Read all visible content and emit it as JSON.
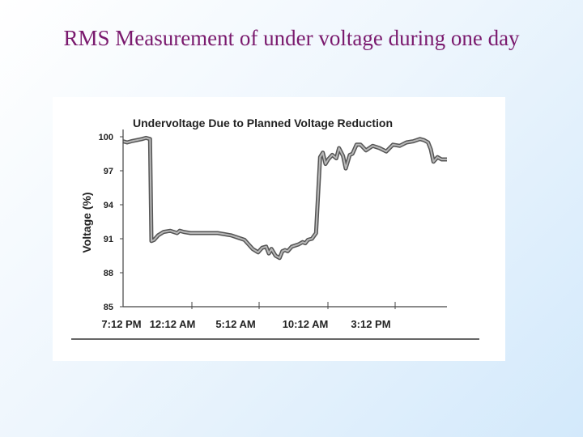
{
  "slide": {
    "title": "RMS Measurement of under voltage during one day"
  },
  "chart_data": {
    "type": "line",
    "title": "Undervoltage Due to Planned Voltage Reduction",
    "xlabel": "",
    "ylabel": "Voltage (%)",
    "ylim": [
      85,
      100
    ],
    "yticks": [
      "100",
      "97",
      "94",
      "91",
      "88",
      "85"
    ],
    "xticks": [
      "7:12 PM",
      "12:12 AM",
      "5:12 AM",
      "10:12 AM",
      "3:12 PM"
    ],
    "xlim": [
      0,
      24
    ],
    "grid": false,
    "series": [
      {
        "color": "#555555",
        "x": [
          0,
          0.3,
          0.6,
          1.0,
          1.4,
          1.7,
          2.0,
          2.1,
          2.3,
          2.6,
          3.0,
          3.5,
          4.0,
          4.2,
          4.5,
          5.0,
          6.0,
          7.0,
          7.5,
          8.0,
          8.5,
          9.0,
          9.3,
          9.6,
          10.0,
          10.3,
          10.6,
          10.8,
          11.0,
          11.3,
          11.6,
          11.8,
          12.0,
          12.2,
          12.5,
          13.0,
          13.3,
          13.5,
          13.7,
          14.0,
          14.3,
          14.6,
          14.8,
          15.0,
          15.2,
          15.5,
          15.8,
          16.0,
          16.3,
          16.5,
          16.8,
          17.0,
          17.3,
          17.6,
          18.0,
          18.5,
          19.0,
          19.5,
          20.0,
          20.5,
          21.0,
          21.5,
          22.0,
          22.3,
          22.6,
          22.8,
          23.0,
          23.3,
          23.6,
          24.0
        ],
        "values": [
          99.6,
          99.5,
          99.6,
          99.7,
          99.8,
          99.9,
          99.8,
          90.8,
          90.9,
          91.3,
          91.6,
          91.7,
          91.5,
          91.7,
          91.6,
          91.5,
          91.5,
          91.5,
          91.4,
          91.3,
          91.1,
          90.9,
          90.5,
          90.1,
          89.8,
          90.2,
          90.3,
          89.7,
          90.1,
          89.5,
          89.3,
          89.9,
          90.0,
          89.9,
          90.3,
          90.5,
          90.7,
          90.6,
          90.9,
          91.0,
          91.5,
          98.2,
          98.6,
          97.6,
          98.0,
          98.4,
          98.1,
          99.0,
          98.3,
          97.2,
          98.4,
          98.5,
          99.3,
          99.3,
          98.8,
          99.2,
          99.0,
          98.7,
          99.3,
          99.2,
          99.5,
          99.6,
          99.8,
          99.7,
          99.5,
          98.9,
          97.8,
          98.2,
          98.0,
          98.0
        ]
      }
    ]
  }
}
